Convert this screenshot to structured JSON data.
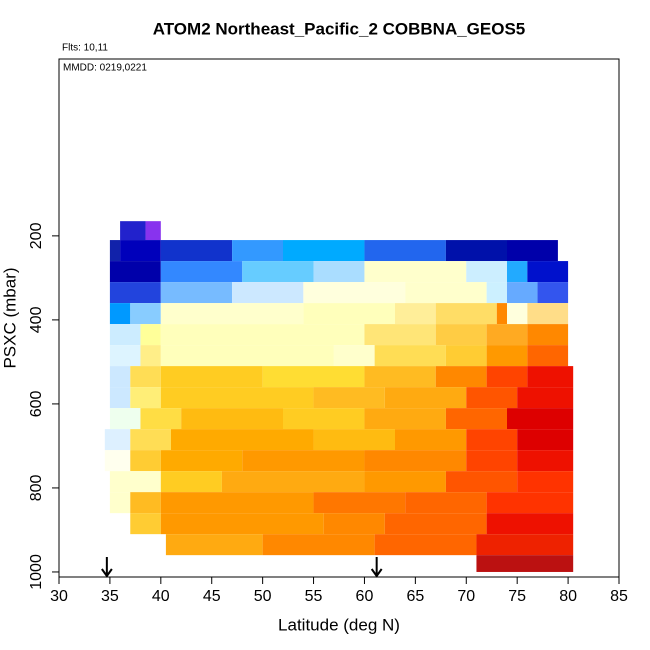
{
  "chart_data": {
    "type": "curtain",
    "title": "ATOM2 Northeast_Pacific_2 COBBNA_GEOS5",
    "flights": "Flts: 10,11",
    "dates": "MMDD: 0219,0221",
    "x_label": "Latitude (deg N)",
    "y_label": "PSXC (mbar)",
    "xlim": [
      30,
      85
    ],
    "xticks": [
      30,
      35,
      40,
      45,
      50,
      55,
      60,
      65,
      70,
      75,
      80,
      85
    ],
    "ylim": [
      1012,
      -221
    ],
    "yticks": [
      200,
      400,
      600,
      800,
      1000
    ],
    "arrows_lat": [
      34.7,
      61.2
    ],
    "rows": [
      {
        "p_top": 165,
        "p_bottom": 210,
        "cells": [
          {
            "lat0": 36,
            "lat1": 38.5,
            "color": "#2222cc"
          },
          {
            "lat0": 38.5,
            "lat1": 40,
            "color": "#8833ee"
          }
        ]
      },
      {
        "p_top": 210,
        "p_bottom": 260,
        "cells": [
          {
            "lat0": 35,
            "lat1": 36,
            "color": "#1122aa"
          },
          {
            "lat0": 36,
            "lat1": 40,
            "color": "#0000bb"
          },
          {
            "lat0": 40,
            "lat1": 47,
            "color": "#1133cc"
          },
          {
            "lat0": 47,
            "lat1": 52,
            "color": "#3399ff"
          },
          {
            "lat0": 52,
            "lat1": 60,
            "color": "#00aaff"
          },
          {
            "lat0": 60,
            "lat1": 68,
            "color": "#2266ee"
          },
          {
            "lat0": 68,
            "lat1": 74,
            "color": "#0011aa"
          },
          {
            "lat0": 74,
            "lat1": 79,
            "color": "#0000aa"
          }
        ]
      },
      {
        "p_top": 260,
        "p_bottom": 310,
        "cells": [
          {
            "lat0": 35,
            "lat1": 40,
            "color": "#0000aa"
          },
          {
            "lat0": 40,
            "lat1": 48,
            "color": "#3388ff"
          },
          {
            "lat0": 48,
            "lat1": 55,
            "color": "#66ccff"
          },
          {
            "lat0": 55,
            "lat1": 60,
            "color": "#aaddff"
          },
          {
            "lat0": 60,
            "lat1": 70,
            "color": "#ffffcc"
          },
          {
            "lat0": 70,
            "lat1": 74,
            "color": "#cceeff"
          },
          {
            "lat0": 74,
            "lat1": 76,
            "color": "#22aaff"
          },
          {
            "lat0": 76,
            "lat1": 80,
            "color": "#0011cc"
          }
        ]
      },
      {
        "p_top": 310,
        "p_bottom": 360,
        "cells": [
          {
            "lat0": 35,
            "lat1": 40,
            "color": "#2244dd"
          },
          {
            "lat0": 40,
            "lat1": 47,
            "color": "#77bbff"
          },
          {
            "lat0": 47,
            "lat1": 54,
            "color": "#cce8ff"
          },
          {
            "lat0": 54,
            "lat1": 64,
            "color": "#ffffdd"
          },
          {
            "lat0": 64,
            "lat1": 72,
            "color": "#ffffcc"
          },
          {
            "lat0": 72,
            "lat1": 74,
            "color": "#ccf0ff"
          },
          {
            "lat0": 74,
            "lat1": 77,
            "color": "#66aaff"
          },
          {
            "lat0": 77,
            "lat1": 80,
            "color": "#3355ee"
          }
        ]
      },
      {
        "p_top": 360,
        "p_bottom": 410,
        "cells": [
          {
            "lat0": 35,
            "lat1": 37,
            "color": "#0099ff"
          },
          {
            "lat0": 37,
            "lat1": 40,
            "color": "#88ccff"
          },
          {
            "lat0": 40,
            "lat1": 54,
            "color": "#ffffcc"
          },
          {
            "lat0": 54,
            "lat1": 63,
            "color": "#ffffbb"
          },
          {
            "lat0": 63,
            "lat1": 67,
            "color": "#ffee99"
          },
          {
            "lat0": 67,
            "lat1": 73,
            "color": "#ffdd66"
          },
          {
            "lat0": 73,
            "lat1": 74,
            "color": "#ff8800"
          },
          {
            "lat0": 74,
            "lat1": 76,
            "color": "#ffffdd"
          },
          {
            "lat0": 76,
            "lat1": 80,
            "color": "#ffdd88"
          }
        ]
      },
      {
        "p_top": 410,
        "p_bottom": 460,
        "cells": [
          {
            "lat0": 35,
            "lat1": 38,
            "color": "#ccecff"
          },
          {
            "lat0": 38,
            "lat1": 40,
            "color": "#ffff99"
          },
          {
            "lat0": 40,
            "lat1": 60,
            "color": "#ffffbb"
          },
          {
            "lat0": 60,
            "lat1": 67,
            "color": "#ffe577"
          },
          {
            "lat0": 67,
            "lat1": 72,
            "color": "#ffcc44"
          },
          {
            "lat0": 72,
            "lat1": 76,
            "color": "#ffaa22"
          },
          {
            "lat0": 76,
            "lat1": 80,
            "color": "#ff8800"
          }
        ]
      },
      {
        "p_top": 460,
        "p_bottom": 510,
        "cells": [
          {
            "lat0": 35,
            "lat1": 38,
            "color": "#ddf4ff"
          },
          {
            "lat0": 38,
            "lat1": 40,
            "color": "#ffee88"
          },
          {
            "lat0": 40,
            "lat1": 57,
            "color": "#ffffbb"
          },
          {
            "lat0": 57,
            "lat1": 61,
            "color": "#ffffcc"
          },
          {
            "lat0": 61,
            "lat1": 68,
            "color": "#ffdd55"
          },
          {
            "lat0": 68,
            "lat1": 72,
            "color": "#ffcc33"
          },
          {
            "lat0": 72,
            "lat1": 76,
            "color": "#ff9900"
          },
          {
            "lat0": 76,
            "lat1": 80,
            "color": "#ff6600"
          }
        ]
      },
      {
        "p_top": 510,
        "p_bottom": 560,
        "cells": [
          {
            "lat0": 35,
            "lat1": 37,
            "color": "#cce8ff"
          },
          {
            "lat0": 37,
            "lat1": 40,
            "color": "#ffdd55"
          },
          {
            "lat0": 40,
            "lat1": 50,
            "color": "#ffcc22"
          },
          {
            "lat0": 50,
            "lat1": 60,
            "color": "#ffdd33"
          },
          {
            "lat0": 60,
            "lat1": 67,
            "color": "#ffbb22"
          },
          {
            "lat0": 67,
            "lat1": 72,
            "color": "#ff8800"
          },
          {
            "lat0": 72,
            "lat1": 76,
            "color": "#ff4400"
          },
          {
            "lat0": 76,
            "lat1": 80.5,
            "color": "#ee1100"
          }
        ]
      },
      {
        "p_top": 560,
        "p_bottom": 610,
        "cells": [
          {
            "lat0": 35,
            "lat1": 37,
            "color": "#cce8ff"
          },
          {
            "lat0": 37,
            "lat1": 40,
            "color": "#ffee77"
          },
          {
            "lat0": 40,
            "lat1": 55,
            "color": "#ffcc22"
          },
          {
            "lat0": 55,
            "lat1": 62,
            "color": "#ffbb22"
          },
          {
            "lat0": 62,
            "lat1": 70,
            "color": "#ffaa11"
          },
          {
            "lat0": 70,
            "lat1": 75,
            "color": "#ff5500"
          },
          {
            "lat0": 75,
            "lat1": 80.5,
            "color": "#ee1100"
          }
        ]
      },
      {
        "p_top": 610,
        "p_bottom": 660,
        "cells": [
          {
            "lat0": 35,
            "lat1": 38,
            "color": "#eeffee"
          },
          {
            "lat0": 38,
            "lat1": 42,
            "color": "#ffdd44"
          },
          {
            "lat0": 42,
            "lat1": 52,
            "color": "#ffbb11"
          },
          {
            "lat0": 52,
            "lat1": 60,
            "color": "#ffcc22"
          },
          {
            "lat0": 60,
            "lat1": 68,
            "color": "#ffaa11"
          },
          {
            "lat0": 68,
            "lat1": 74,
            "color": "#ff6600"
          },
          {
            "lat0": 74,
            "lat1": 80.5,
            "color": "#dd0000"
          }
        ]
      },
      {
        "p_top": 660,
        "p_bottom": 710,
        "cells": [
          {
            "lat0": 34.5,
            "lat1": 37,
            "color": "#ddf0ff"
          },
          {
            "lat0": 37,
            "lat1": 41,
            "color": "#ffdd55"
          },
          {
            "lat0": 41,
            "lat1": 55,
            "color": "#ffaa00"
          },
          {
            "lat0": 55,
            "lat1": 63,
            "color": "#ffbb11"
          },
          {
            "lat0": 63,
            "lat1": 70,
            "color": "#ff9900"
          },
          {
            "lat0": 70,
            "lat1": 75,
            "color": "#ff4400"
          },
          {
            "lat0": 75,
            "lat1": 80.5,
            "color": "#dd0000"
          }
        ]
      },
      {
        "p_top": 710,
        "p_bottom": 760,
        "cells": [
          {
            "lat0": 34.5,
            "lat1": 37,
            "color": "#ffffee"
          },
          {
            "lat0": 37,
            "lat1": 40,
            "color": "#ffcc33"
          },
          {
            "lat0": 40,
            "lat1": 48,
            "color": "#ffaa00"
          },
          {
            "lat0": 48,
            "lat1": 60,
            "color": "#ff9900"
          },
          {
            "lat0": 60,
            "lat1": 70,
            "color": "#ff8800"
          },
          {
            "lat0": 70,
            "lat1": 75,
            "color": "#ff4400"
          },
          {
            "lat0": 75,
            "lat1": 80.5,
            "color": "#ee1100"
          }
        ]
      },
      {
        "p_top": 760,
        "p_bottom": 810,
        "cells": [
          {
            "lat0": 35,
            "lat1": 40,
            "color": "#ffffcc"
          },
          {
            "lat0": 40,
            "lat1": 46,
            "color": "#ffcc22"
          },
          {
            "lat0": 46,
            "lat1": 60,
            "color": "#ffaa11"
          },
          {
            "lat0": 60,
            "lat1": 68,
            "color": "#ff9900"
          },
          {
            "lat0": 68,
            "lat1": 75,
            "color": "#ff5500"
          },
          {
            "lat0": 75,
            "lat1": 80.5,
            "color": "#ff3300"
          }
        ]
      },
      {
        "p_top": 810,
        "p_bottom": 860,
        "cells": [
          {
            "lat0": 35,
            "lat1": 37,
            "color": "#ffffcc"
          },
          {
            "lat0": 37,
            "lat1": 40,
            "color": "#ffbb22"
          },
          {
            "lat0": 40,
            "lat1": 55,
            "color": "#ff9900"
          },
          {
            "lat0": 55,
            "lat1": 64,
            "color": "#ff7700"
          },
          {
            "lat0": 64,
            "lat1": 72,
            "color": "#ff6600"
          },
          {
            "lat0": 72,
            "lat1": 80.5,
            "color": "#ff3300"
          }
        ]
      },
      {
        "p_top": 860,
        "p_bottom": 910,
        "cells": [
          {
            "lat0": 37,
            "lat1": 40,
            "color": "#ffcc33"
          },
          {
            "lat0": 40,
            "lat1": 56,
            "color": "#ff9900"
          },
          {
            "lat0": 56,
            "lat1": 62,
            "color": "#ff8800"
          },
          {
            "lat0": 62,
            "lat1": 72,
            "color": "#ff6600"
          },
          {
            "lat0": 72,
            "lat1": 80.5,
            "color": "#ee1100"
          }
        ]
      },
      {
        "p_top": 910,
        "p_bottom": 960,
        "cells": [
          {
            "lat0": 40.5,
            "lat1": 50,
            "color": "#ffaa11"
          },
          {
            "lat0": 50,
            "lat1": 61,
            "color": "#ff8800"
          },
          {
            "lat0": 61,
            "lat1": 71,
            "color": "#ff6600"
          },
          {
            "lat0": 71,
            "lat1": 80.5,
            "color": "#ee2200"
          }
        ]
      },
      {
        "p_top": 960,
        "p_bottom": 1000,
        "cells": [
          {
            "lat0": 71,
            "lat1": 80.5,
            "color": "#bb1111"
          }
        ]
      }
    ]
  }
}
